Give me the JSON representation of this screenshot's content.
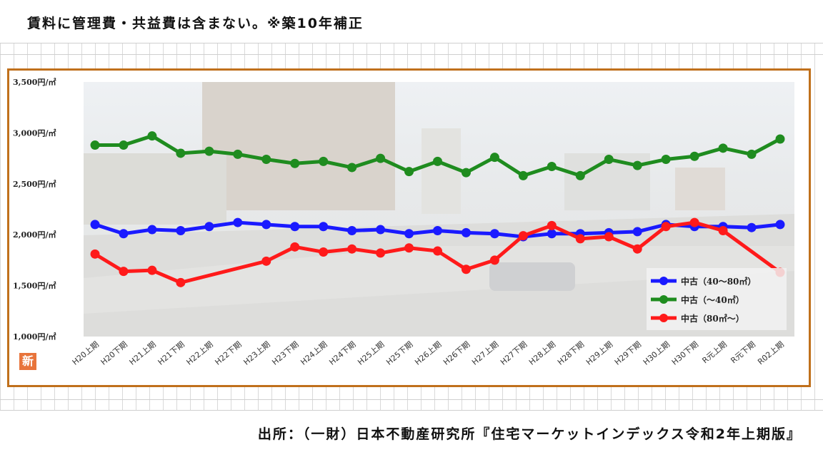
{
  "header": {
    "caption": "賃料に管理費・共益費は含まない。※築10年補正"
  },
  "footer": {
    "source": "出所：（一財）日本不動産研究所『住宅マーケットインデックス令和2年上期版』"
  },
  "badge": {
    "label": "新"
  },
  "chart_data": {
    "type": "line",
    "title": "",
    "xlabel": "",
    "ylabel": "",
    "ylim": [
      1000,
      3500
    ],
    "yticks": [
      {
        "value": 1000,
        "label": "1,000円/㎡"
      },
      {
        "value": 1500,
        "label": "1,500円/㎡"
      },
      {
        "value": 2000,
        "label": "2,000円/㎡"
      },
      {
        "value": 2500,
        "label": "2,500円/㎡"
      },
      {
        "value": 3000,
        "label": "3,000円/㎡"
      },
      {
        "value": 3500,
        "label": "3,500円/㎡"
      }
    ],
    "categories": [
      "H20上期",
      "H20下期",
      "H21上期",
      "H21下期",
      "H22上期",
      "H22下期",
      "H23上期",
      "H23下期",
      "H24上期",
      "H24下期",
      "H25上期",
      "H25下期",
      "H26上期",
      "H26下期",
      "H27上期",
      "H27下期",
      "H28上期",
      "H28下期",
      "H29上期",
      "H29下期",
      "H30上期",
      "H30下期",
      "R元上期",
      "R元下期",
      "R02上期"
    ],
    "legend_position": "bottom-right",
    "series": [
      {
        "name": "中古（40～80㎡）",
        "color": "#1a1aff",
        "values": [
          2100,
          2010,
          2050,
          2040,
          2080,
          2120,
          2100,
          2080,
          2080,
          2040,
          2050,
          2010,
          2040,
          2020,
          2010,
          1980,
          2010,
          2010,
          2020,
          2030,
          2100,
          2080,
          2080,
          2070,
          2100
        ]
      },
      {
        "name": "中古（～40㎡）",
        "color": "#1f8c1f",
        "values": [
          2880,
          2880,
          2970,
          2800,
          2820,
          2790,
          2740,
          2700,
          2720,
          2660,
          2750,
          2620,
          2720,
          2610,
          2760,
          2580,
          2670,
          2580,
          2740,
          2680,
          2740,
          2770,
          2850,
          2790,
          2940
        ]
      },
      {
        "name": "中古（80㎡～）",
        "color": "#ff1a1a",
        "values": [
          1810,
          1640,
          1650,
          1530,
          null,
          null,
          1740,
          1880,
          1830,
          1860,
          1820,
          1870,
          1840,
          1660,
          1750,
          1990,
          2090,
          1960,
          1980,
          1860,
          2080,
          2120,
          2040,
          null,
          1630
        ]
      }
    ]
  }
}
